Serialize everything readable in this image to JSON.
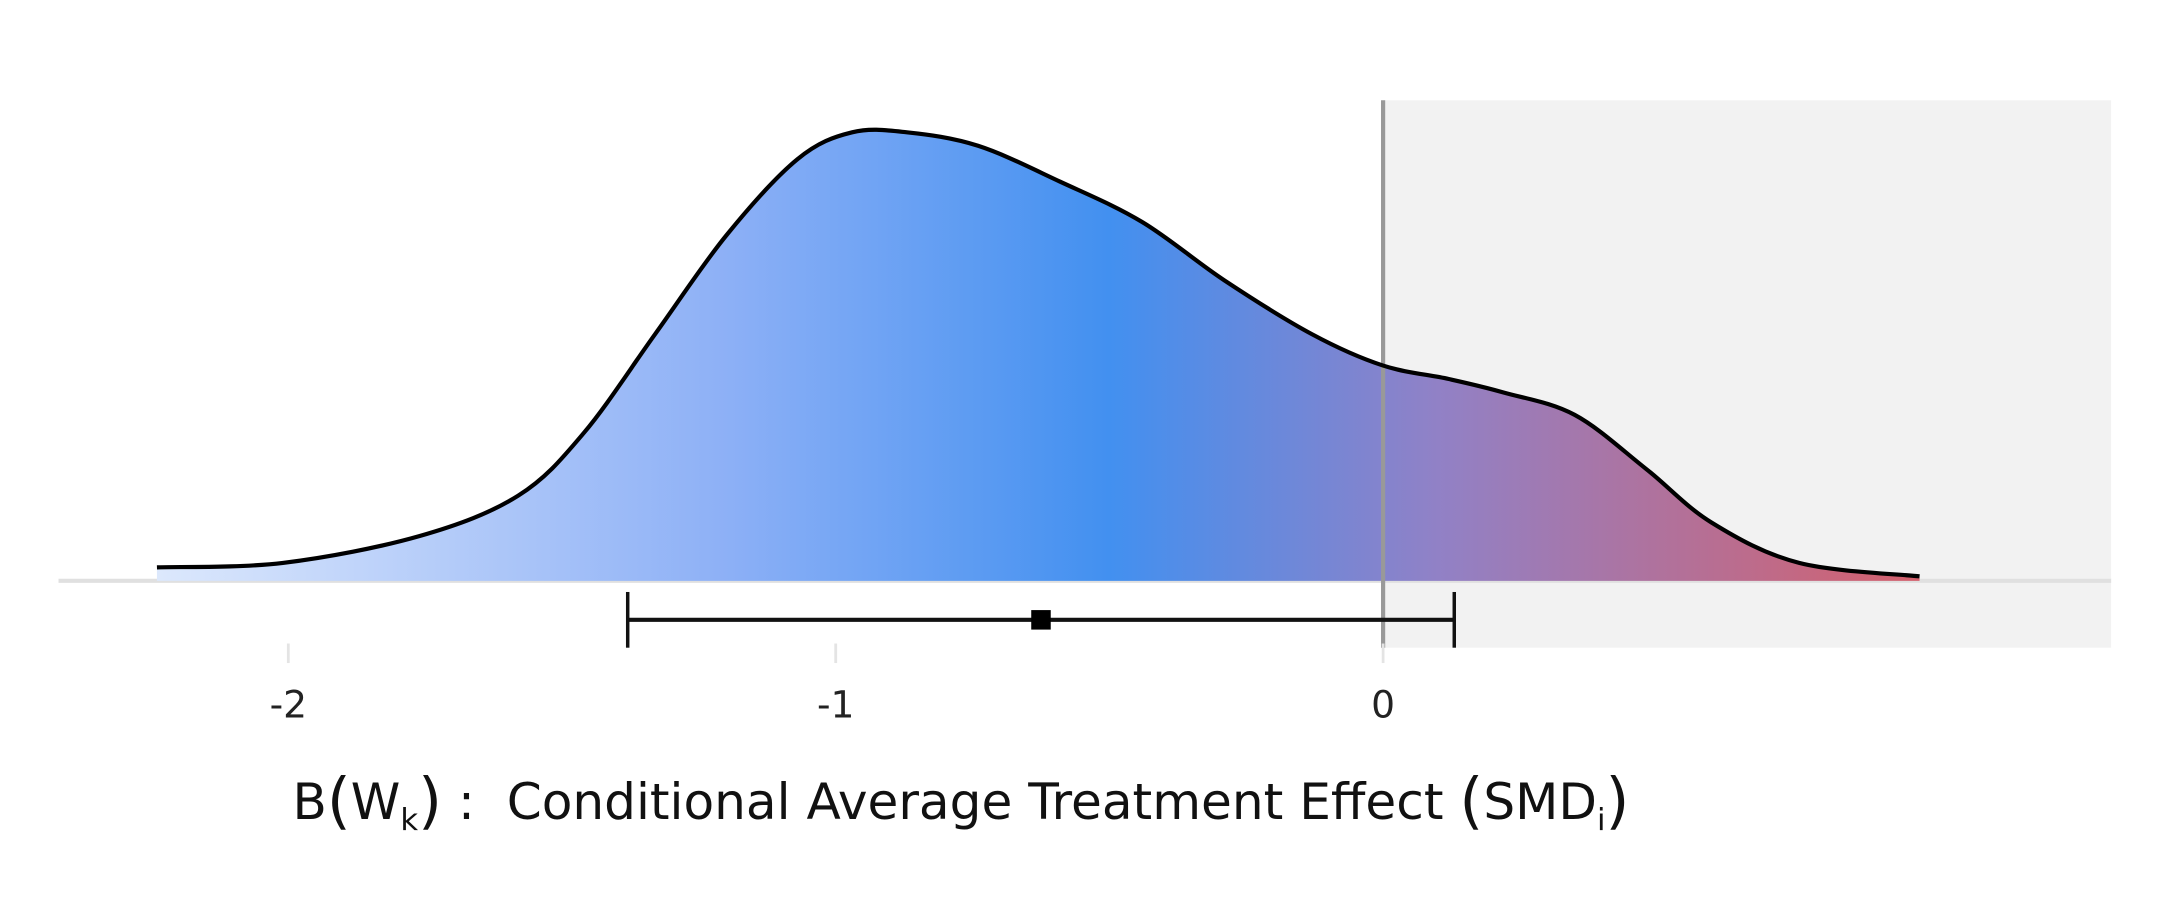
{
  "chart_data": {
    "type": "area",
    "subtype": "density",
    "title": "",
    "xlabel": "B(W_k) : Conditional Average Treatment Effect (SMD_i)",
    "xlabel_parts": {
      "pre": "B",
      "w": "W",
      "k": "k",
      "colon": " :  Conditional Average Treatment Effect ",
      "smd": "SMD",
      "i": "i"
    },
    "ylabel": "",
    "xlim": [
      -2.38,
      1.33
    ],
    "x_ticks": [
      -2,
      -1,
      0
    ],
    "x_tick_labels": [
      "-2",
      "-1",
      "0"
    ],
    "grid": false,
    "shaded_region": {
      "from": 0,
      "to": 1.33,
      "color": "#f2f2f2"
    },
    "reference_line": {
      "x": 0,
      "color": "#999999"
    },
    "density": {
      "x": [
        -2.24,
        -2.01,
        -1.76,
        -1.58,
        -1.46,
        -1.33,
        -1.2,
        -1.07,
        -0.97,
        -0.87,
        -0.74,
        -0.59,
        -0.44,
        -0.29,
        -0.13,
        0.0,
        0.12,
        0.22,
        0.35,
        0.48,
        0.6,
        0.76,
        0.98
      ],
      "y": [
        0.03,
        0.04,
        0.1,
        0.19,
        0.33,
        0.55,
        0.77,
        0.94,
        1.0,
        1.0,
        0.97,
        0.89,
        0.8,
        0.67,
        0.55,
        0.48,
        0.45,
        0.42,
        0.37,
        0.25,
        0.13,
        0.04,
        0.01
      ],
      "gradient": [
        {
          "x": -2.24,
          "color": "#dce8fc"
        },
        {
          "x": -1.2,
          "color": "#8db0f6"
        },
        {
          "x": -0.5,
          "color": "#4290f0"
        },
        {
          "x": 0.1,
          "color": "#9181c6"
        },
        {
          "x": 0.98,
          "color": "#d4606c"
        }
      ]
    },
    "interval": {
      "lower": -1.38,
      "estimate": -0.625,
      "upper": 0.13
    }
  }
}
